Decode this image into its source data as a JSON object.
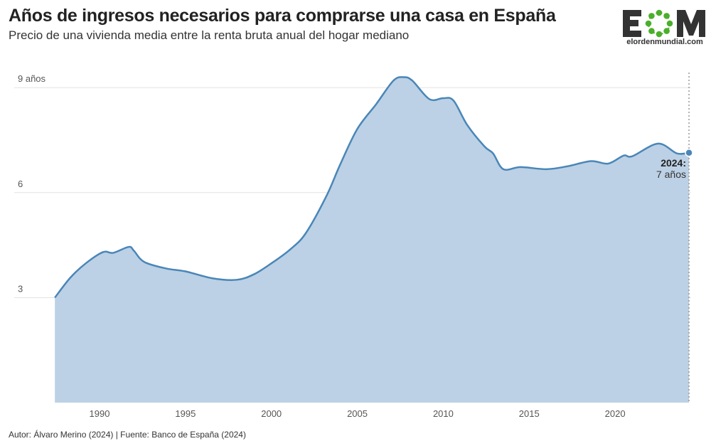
{
  "header": {
    "title": "Años de ingresos necesarios para comprarse una casa en España",
    "subtitle": "Precio de una vivienda media entre la renta bruta anual del hogar mediano"
  },
  "logo": {
    "text": "elordenmundial.com",
    "letters": "EOM",
    "accent": "#4caf2a"
  },
  "footer": {
    "text": "Autor: Álvaro Merino (2024) | Fuente: Banco de España (2024)"
  },
  "chart_data": {
    "type": "area",
    "title": "Años de ingresos necesarios para comprarse una casa en España",
    "subtitle": "Precio de una vivienda media entre la renta bruta anual del hogar mediano",
    "xlabel": "",
    "ylabel": "",
    "xlim": [
      1987.4,
      2024.3
    ],
    "ylim": [
      0,
      9.5
    ],
    "grid": true,
    "x_ticks": [
      "1990",
      "1995",
      "2000",
      "2005",
      "2010",
      "2015",
      "2020"
    ],
    "y_ticks": [
      {
        "value": 3,
        "label": "3"
      },
      {
        "value": 6,
        "label": "6"
      },
      {
        "value": 9,
        "label": "9 años"
      }
    ],
    "colors": {
      "line": "#4a86b8",
      "fill": "#bcd1e5",
      "grid": "#e3e3e3"
    },
    "x": [
      1987.4,
      1988.3,
      1989.2,
      1990.2,
      1990.8,
      1991.7,
      1992.0,
      1992.6,
      1993.9,
      1995.0,
      1996.6,
      1998.0,
      1999.0,
      2000.0,
      2001.1,
      2002.0,
      2003.2,
      2004.0,
      2005.0,
      2006.1,
      2007.1,
      2007.7,
      2008.2,
      2009.2,
      2010.0,
      2010.6,
      2011.4,
      2012.4,
      2012.9,
      2013.5,
      2014.5,
      2016.0,
      2017.2,
      2018.6,
      2019.6,
      2020.5,
      2021.0,
      2022.5,
      2023.6,
      2024.3
    ],
    "values": [
      3.0,
      3.57,
      3.98,
      4.3,
      4.28,
      4.45,
      4.34,
      4.02,
      3.83,
      3.75,
      3.55,
      3.51,
      3.67,
      3.98,
      4.38,
      4.84,
      5.9,
      6.8,
      7.82,
      8.53,
      9.2,
      9.3,
      9.2,
      8.67,
      8.7,
      8.63,
      7.93,
      7.32,
      7.12,
      6.67,
      6.73,
      6.67,
      6.75,
      6.9,
      6.83,
      7.06,
      7.04,
      7.4,
      7.12,
      7.14
    ],
    "annotation": {
      "year_label": "2024:",
      "value_label": "7 años",
      "x": 2024.3,
      "y": 7.14
    }
  }
}
